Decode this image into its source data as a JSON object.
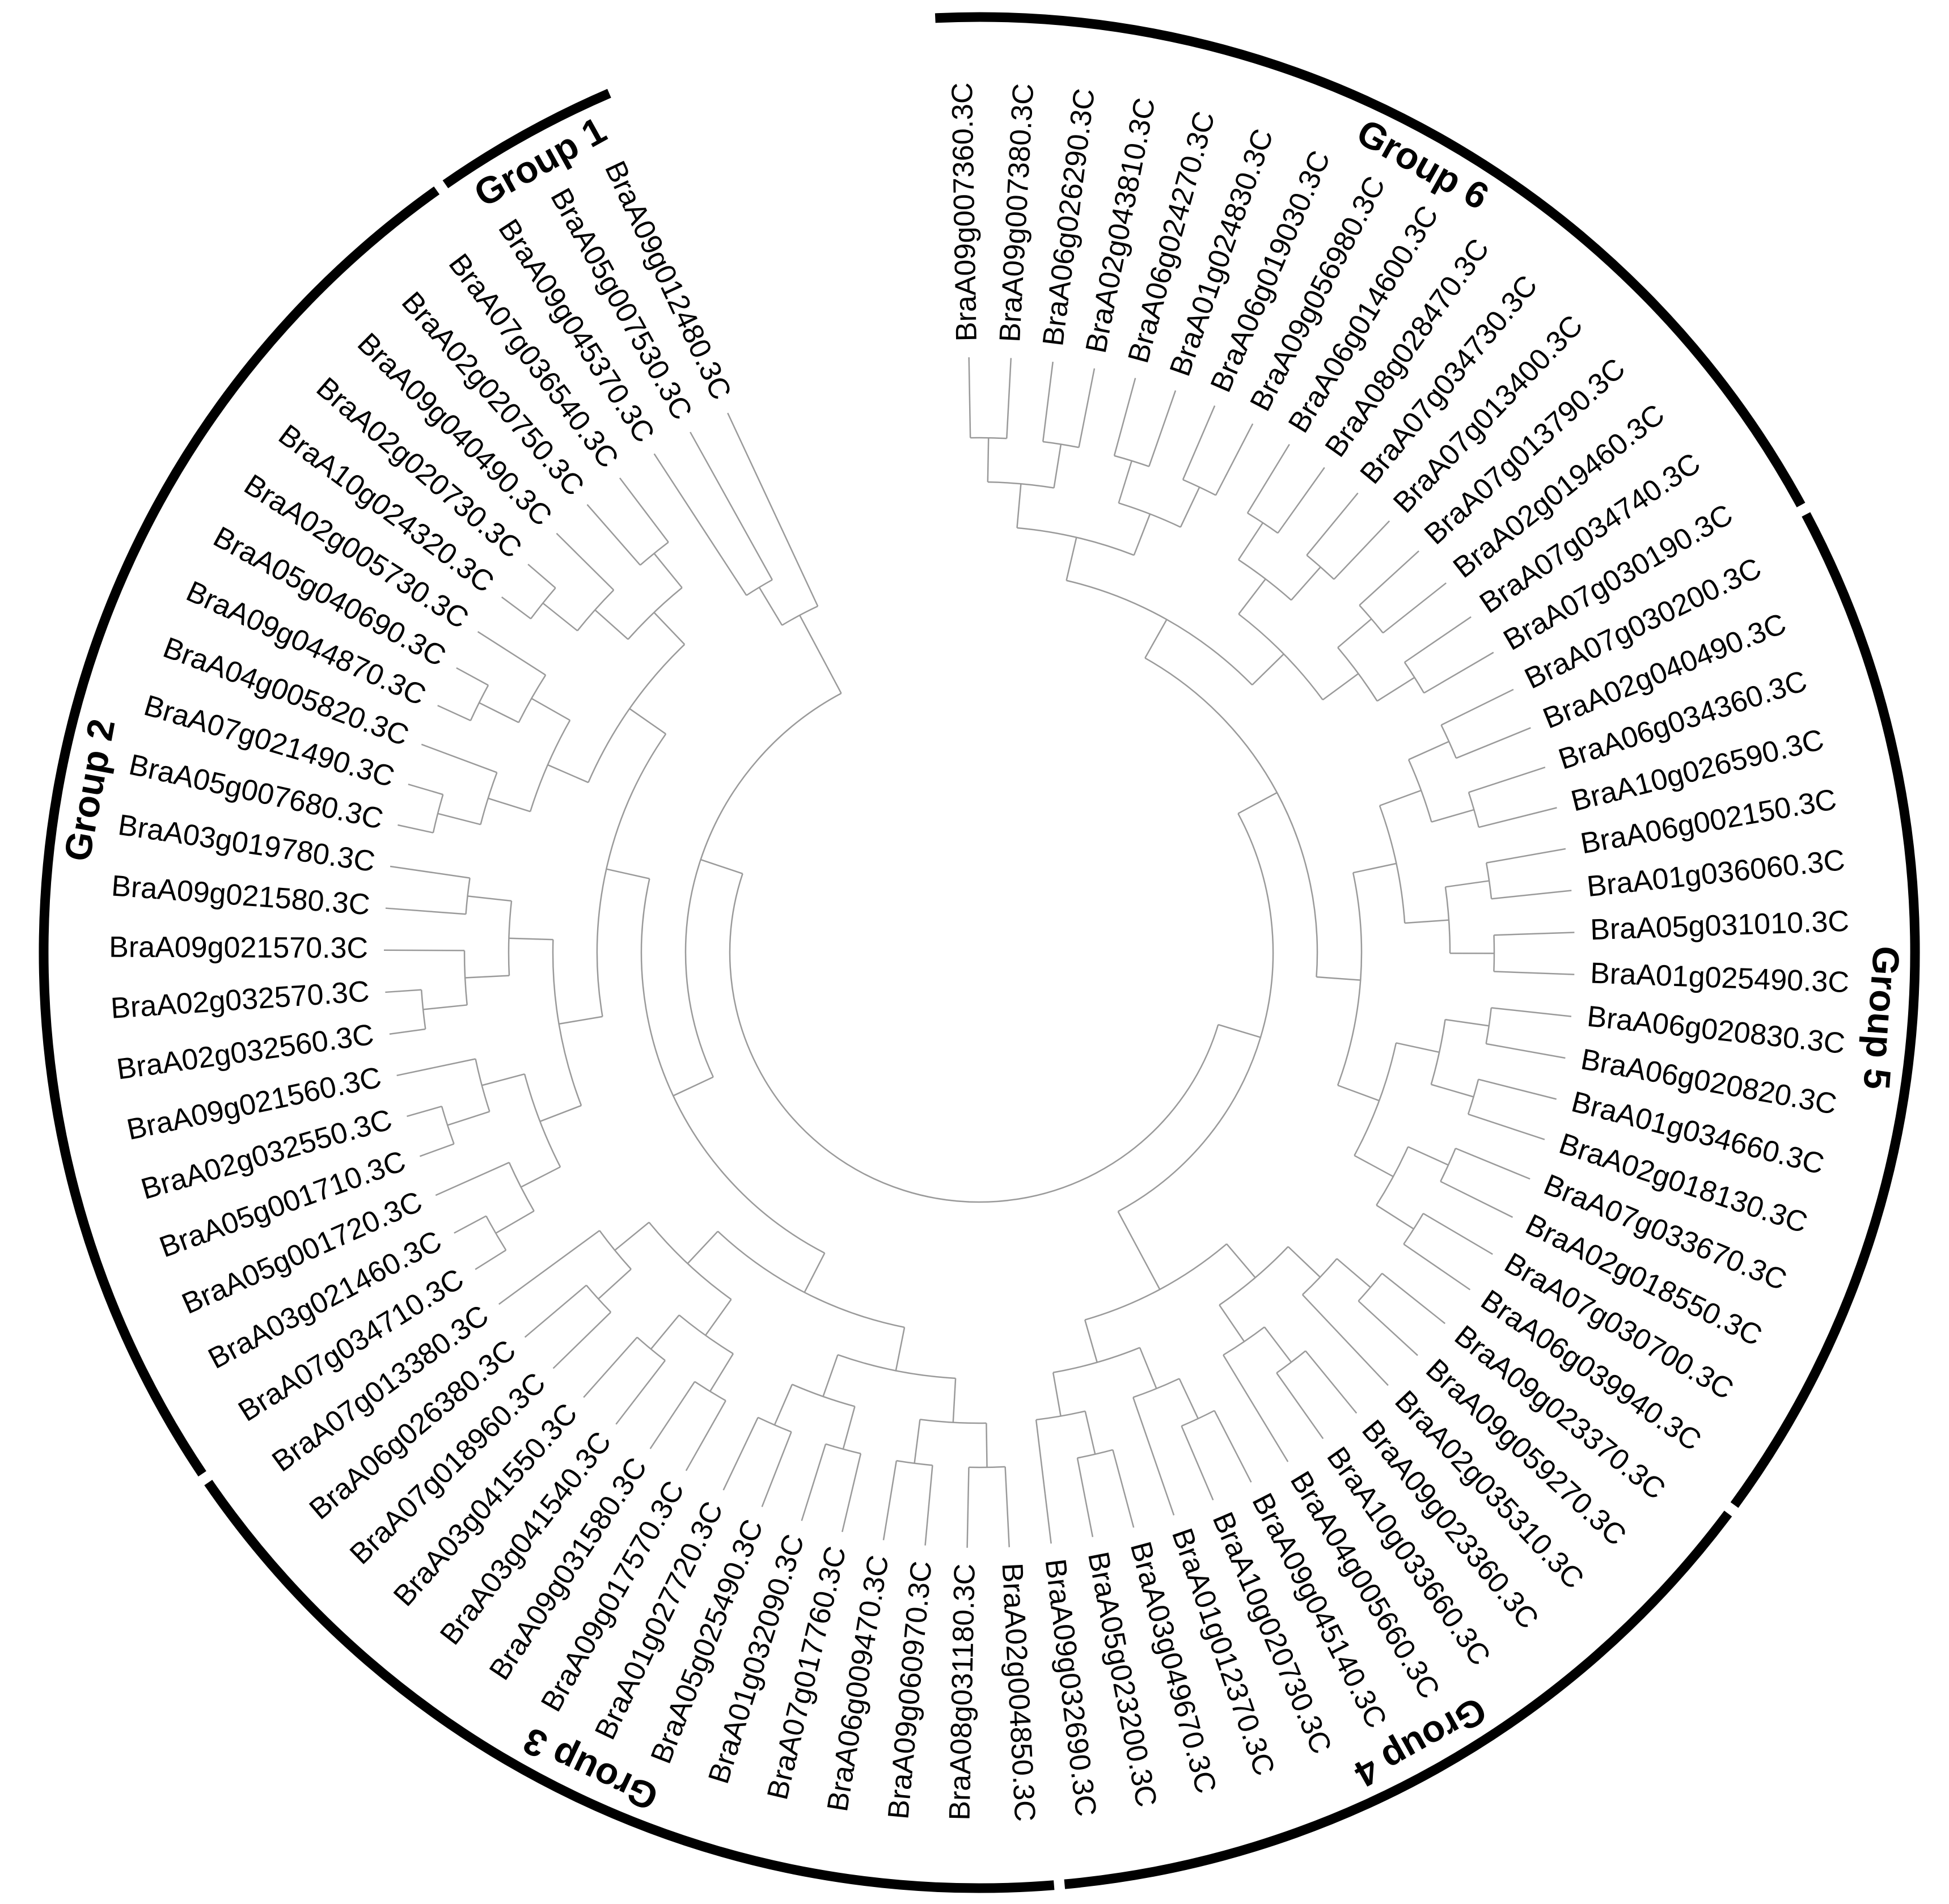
{
  "groups": [
    {
      "label": "Group 6",
      "leaves": [
        "BraA09g007360.3C",
        "BraA09g007380.3C",
        "BraA06g026290.3C",
        "BraA02g043810.3C",
        "BraA06g024270.3C",
        "BraA01g024830.3C",
        "BraA06g019030.3C",
        "BraA09g056980.3C",
        "BraA06g014600.3C",
        "BraA08g028470.3C",
        "BraA07g034730.3C",
        "BraA07g013400.3C",
        "BraA07g013790.3C",
        "BraA02g019460.3C",
        "BraA07g034740.3C",
        "BraA07g030190.3C"
      ]
    },
    {
      "label": "Group 5",
      "leaves": [
        "BraA07g030200.3C",
        "BraA02g040490.3C",
        "BraA06g034360.3C",
        "BraA10g026590.3C",
        "BraA06g002150.3C",
        "BraA01g036060.3C",
        "BraA05g031010.3C",
        "BraA01g025490.3C",
        "BraA06g020830.3C",
        "BraA06g020820.3C",
        "BraA01g034660.3C",
        "BraA02g018130.3C",
        "BraA07g033670.3C",
        "BraA02g018550.3C",
        "BraA07g030700.3C",
        "BraA06g039940.3C"
      ]
    },
    {
      "label": "Group 4",
      "leaves": [
        "BraA09g023370.3C",
        "BraA09g059270.3C",
        "BraA02g035310.3C",
        "BraA09g023360.3C",
        "BraA10g033660.3C",
        "BraA04g005660.3C",
        "BraA09g045140.3C",
        "BraA10g020730.3C",
        "BraA01g012370.3C",
        "BraA03g049670.3C",
        "BraA05g023200.3C",
        "BraA09g032690.3C"
      ]
    },
    {
      "label": "Group 3",
      "leaves": [
        "BraA02g004850.3C",
        "BraA08g031180.3C",
        "BraA09g060970.3C",
        "BraA06g009470.3C",
        "BraA07g017760.3C",
        "BraA01g032090.3C",
        "BraA05g025490.3C",
        "BraA01g027720.3C",
        "BraA09g017570.3C",
        "BraA09g031580.3C",
        "BraA03g041540.3C",
        "BraA03g041550.3C",
        "BraA07g018960.3C",
        "BraA06g026380.3C",
        "BraA07g013380.3C"
      ]
    },
    {
      "label": "Group 2",
      "leaves": [
        "BraA07g034710.3C",
        "BraA03g021460.3C",
        "BraA05g001720.3C",
        "BraA05g001710.3C",
        "BraA02g032550.3C",
        "BraA09g021560.3C",
        "BraA02g032560.3C",
        "BraA02g032570.3C",
        "BraA09g021570.3C",
        "BraA09g021580.3C",
        "BraA03g019780.3C",
        "BraA05g007680.3C",
        "BraA07g021490.3C",
        "BraA04g005820.3C",
        "BraA09g044870.3C",
        "BraA05g040690.3C",
        "BraA02g005730.3C",
        "BraA10g024320.3C",
        "BraA02g020730.3C",
        "BraA09g040490.3C",
        "BraA02g020750.3C",
        "BraA07g036540.3C"
      ]
    },
    {
      "label": "Group 1",
      "leaves": [
        "BraA09g045370.3C",
        "BraA05g007530.3C",
        "BraA09g012480.3C"
      ]
    }
  ]
}
